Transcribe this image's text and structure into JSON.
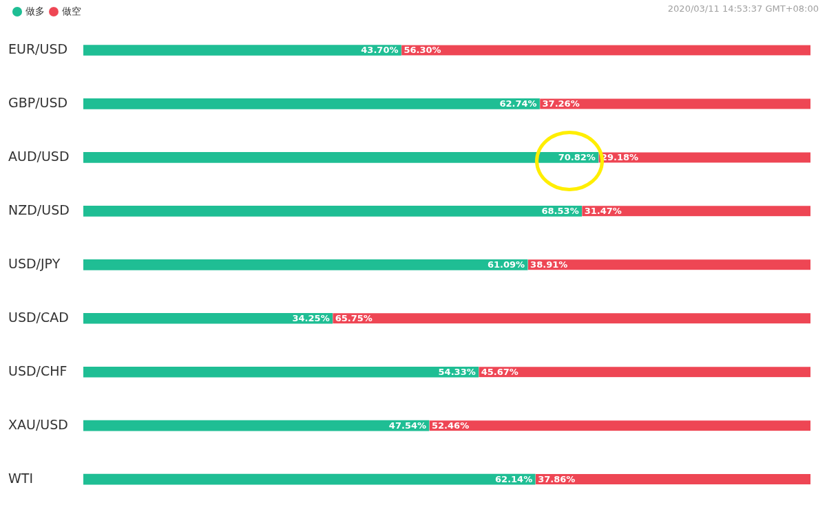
{
  "chart_data": {
    "type": "bar",
    "orientation": "horizontal",
    "stacked": true,
    "legend": "top left",
    "categories": [
      "EUR/USD",
      "GBP/USD",
      "AUD/USD",
      "NZD/USD",
      "USD/JPY",
      "USD/CAD",
      "USD/CHF",
      "XAU/USD",
      "WTI"
    ],
    "series": [
      {
        "name": "做多",
        "color": "#1fbe94",
        "values": [
          43.7,
          62.74,
          70.82,
          68.53,
          61.09,
          34.25,
          54.33,
          47.54,
          62.14
        ],
        "value_labels": [
          "43.70%",
          "62.74%",
          "70.82%",
          "68.53%",
          "61.09%",
          "34.25%",
          "54.33%",
          "47.54%",
          "62.14%"
        ]
      },
      {
        "name": "做空",
        "color": "#ee4654",
        "values": [
          56.3,
          37.26,
          29.18,
          31.47,
          38.91,
          65.75,
          45.67,
          52.46,
          37.86
        ],
        "value_labels": [
          "56.30%",
          "37.26%",
          "29.18%",
          "31.47%",
          "38.91%",
          "65.75%",
          "45.67%",
          "52.46%",
          "37.86%"
        ]
      }
    ],
    "annotations": [
      "2020/03/11 14:53:37 GMT+08:00"
    ]
  }
}
